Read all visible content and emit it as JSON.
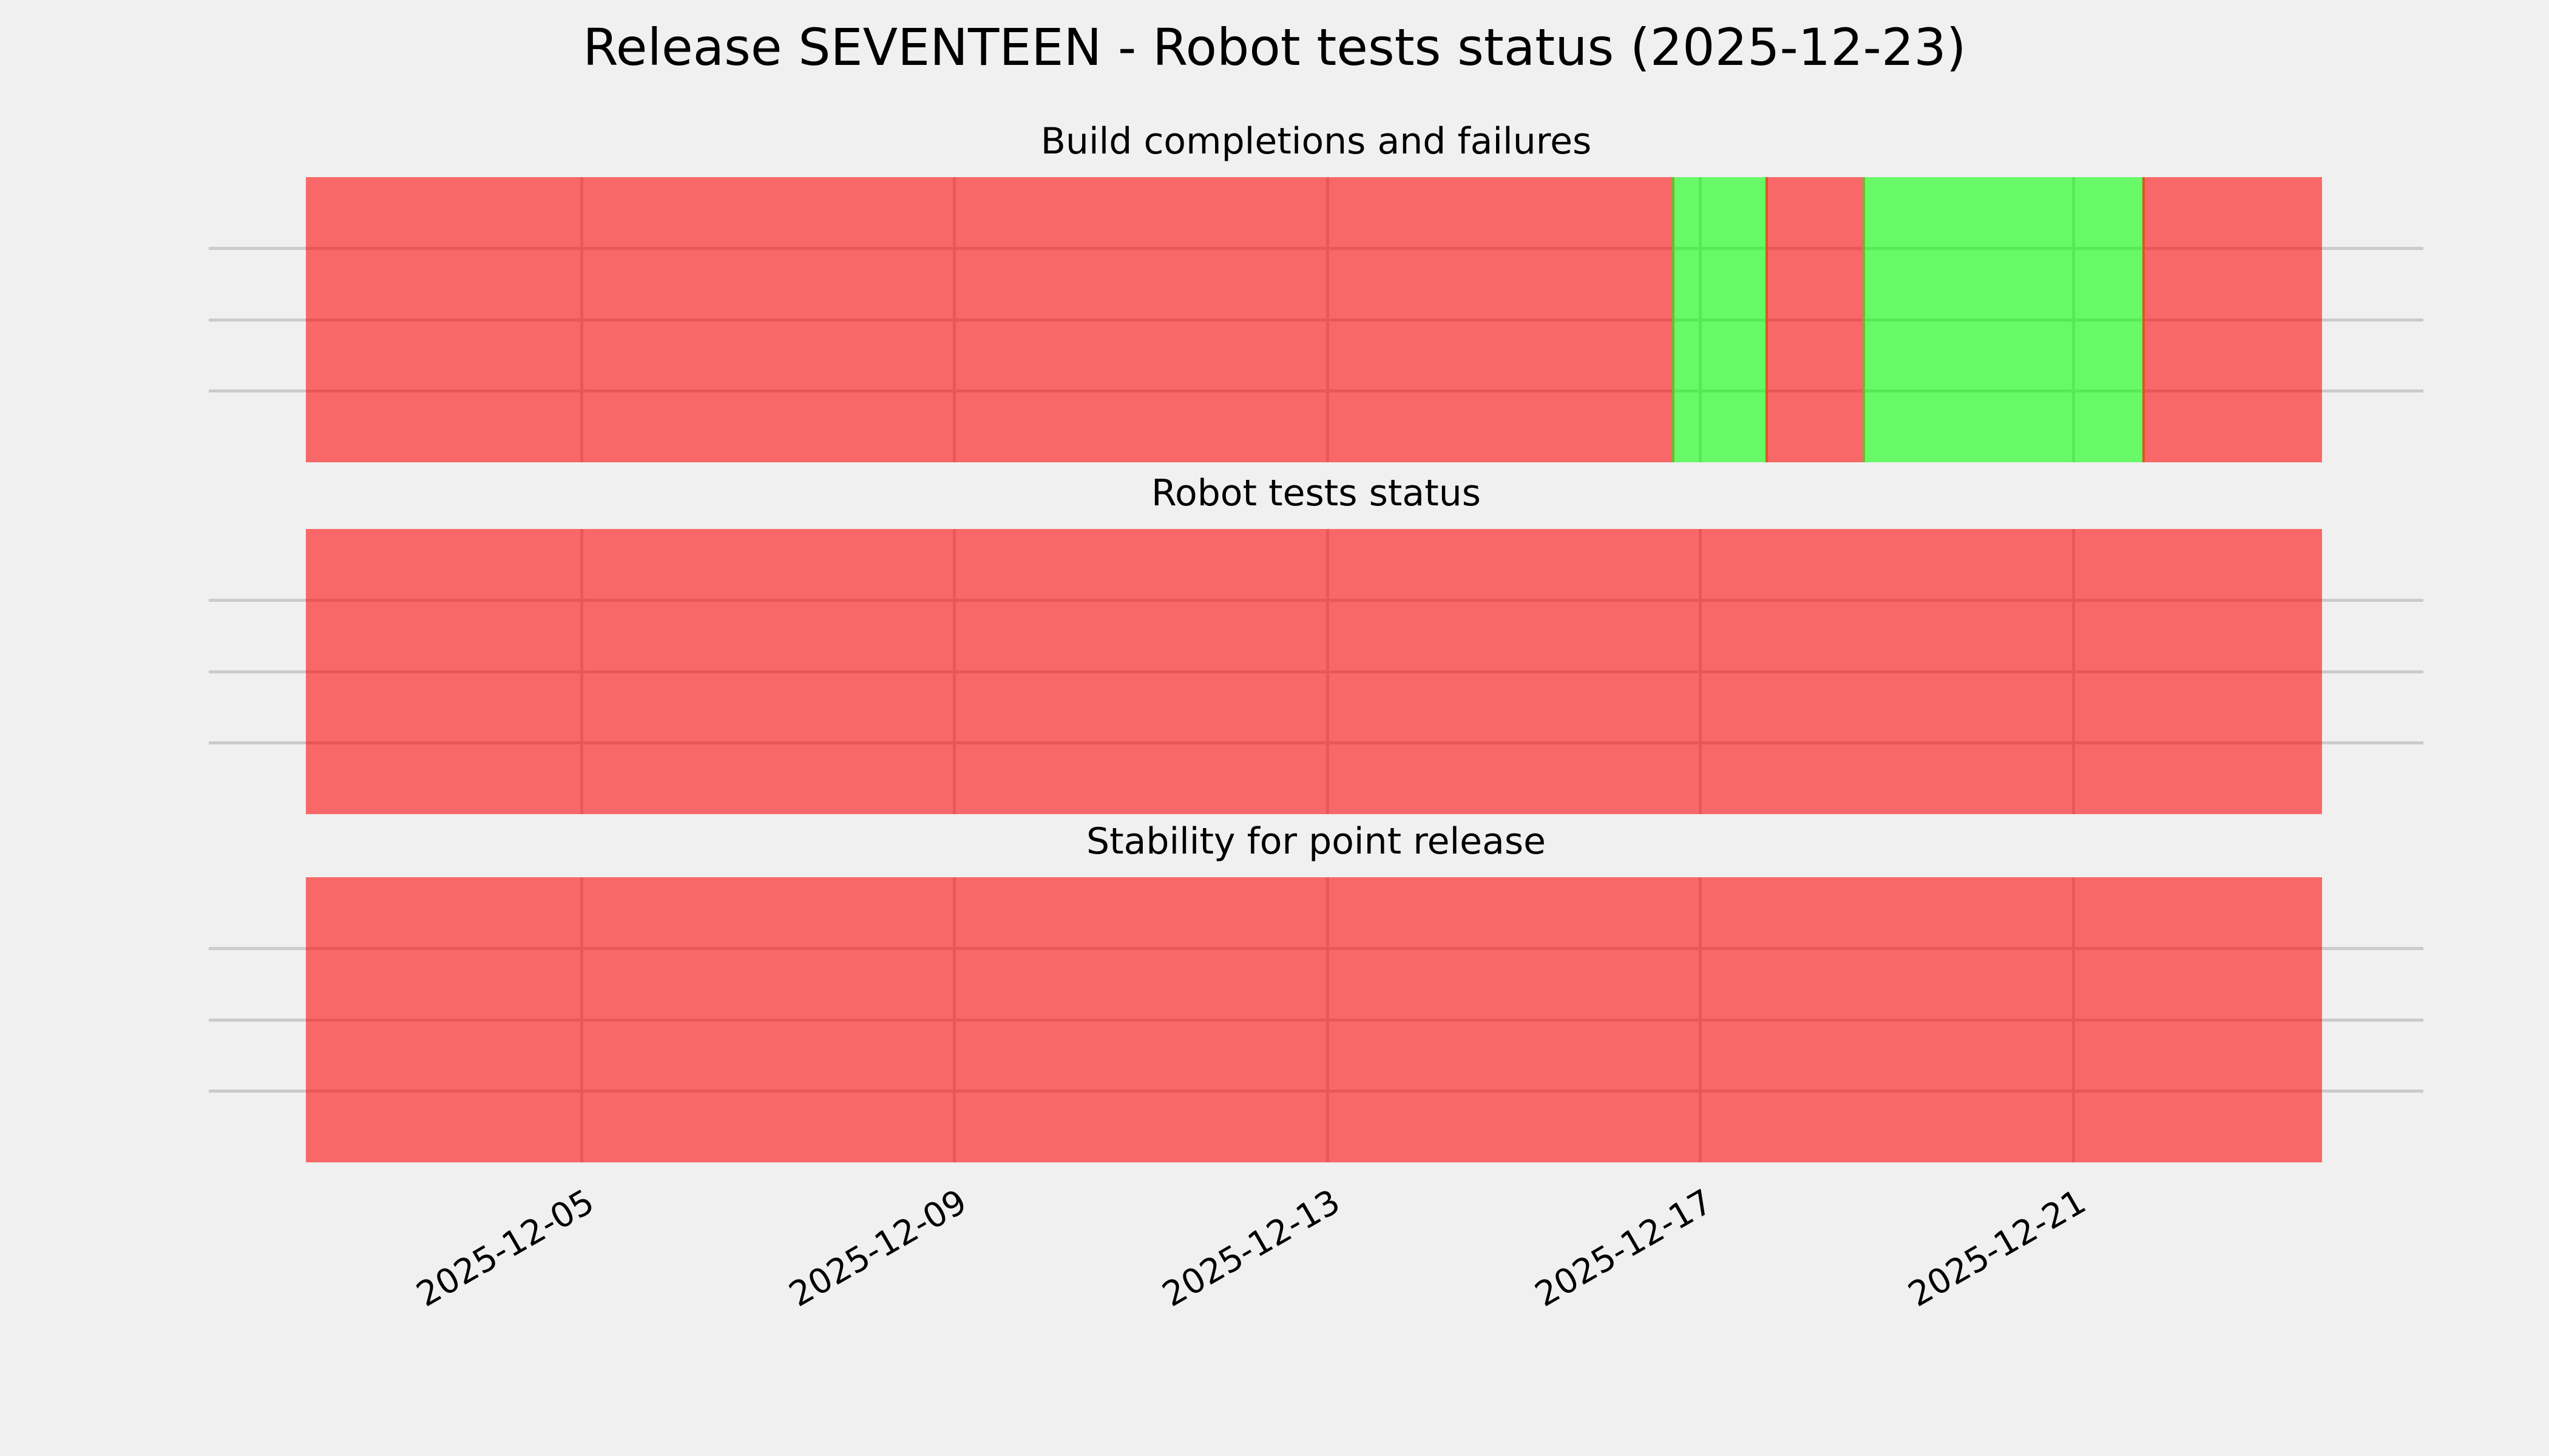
{
  "figure": {
    "background": "#f0f0f0",
    "title": "Release SEVENTEEN - Robot tests status (2025-12-23)"
  },
  "colors": {
    "pass": "rgba(0, 255, 0, 0.57)",
    "fail": "rgba(255, 0, 0, 0.57)",
    "grid": "#cbcbcb",
    "edge_fail_to_pass": "#6cbb2b",
    "edge_pass_to_fail": "#d85a1e",
    "text": "#000000"
  },
  "chart_data": [
    {
      "type": "heatmap",
      "title": "Build completions and failures",
      "rows": 4,
      "grid": true,
      "y_tick_labels": [],
      "x_start": "2025-12-02T01:00",
      "x_end": "2025-12-23T16:00",
      "x_ticks": [
        "2025-12-05",
        "2025-12-09",
        "2025-12-13",
        "2025-12-17",
        "2025-12-21"
      ],
      "segments": [
        {
          "from": "2025-12-02T01:00",
          "to": "2025-12-16T17:00",
          "status": "fail"
        },
        {
          "from": "2025-12-16T17:00",
          "to": "2025-12-17T17:00",
          "status": "pass"
        },
        {
          "from": "2025-12-17T17:00",
          "to": "2025-12-18T18:00",
          "status": "fail"
        },
        {
          "from": "2025-12-18T18:00",
          "to": "2025-12-21T18:00",
          "status": "pass"
        },
        {
          "from": "2025-12-21T18:00",
          "to": "2025-12-23T16:00",
          "status": "fail"
        }
      ]
    },
    {
      "type": "heatmap",
      "title": "Robot tests status",
      "rows": 4,
      "grid": true,
      "y_tick_labels": [],
      "x_start": "2025-12-02T01:00",
      "x_end": "2025-12-23T16:00",
      "x_ticks": [
        "2025-12-05",
        "2025-12-09",
        "2025-12-13",
        "2025-12-17",
        "2025-12-21"
      ],
      "segments": [
        {
          "from": "2025-12-02T01:00",
          "to": "2025-12-23T16:00",
          "status": "fail"
        }
      ]
    },
    {
      "type": "heatmap",
      "title": "Stability for point release",
      "rows": 4,
      "grid": true,
      "y_tick_labels": [],
      "x_start": "2025-12-02T01:00",
      "x_end": "2025-12-23T16:00",
      "x_ticks": [
        "2025-12-05",
        "2025-12-09",
        "2025-12-13",
        "2025-12-17",
        "2025-12-21"
      ],
      "segments": [
        {
          "from": "2025-12-02T01:00",
          "to": "2025-12-23T16:00",
          "status": "fail"
        }
      ]
    }
  ]
}
